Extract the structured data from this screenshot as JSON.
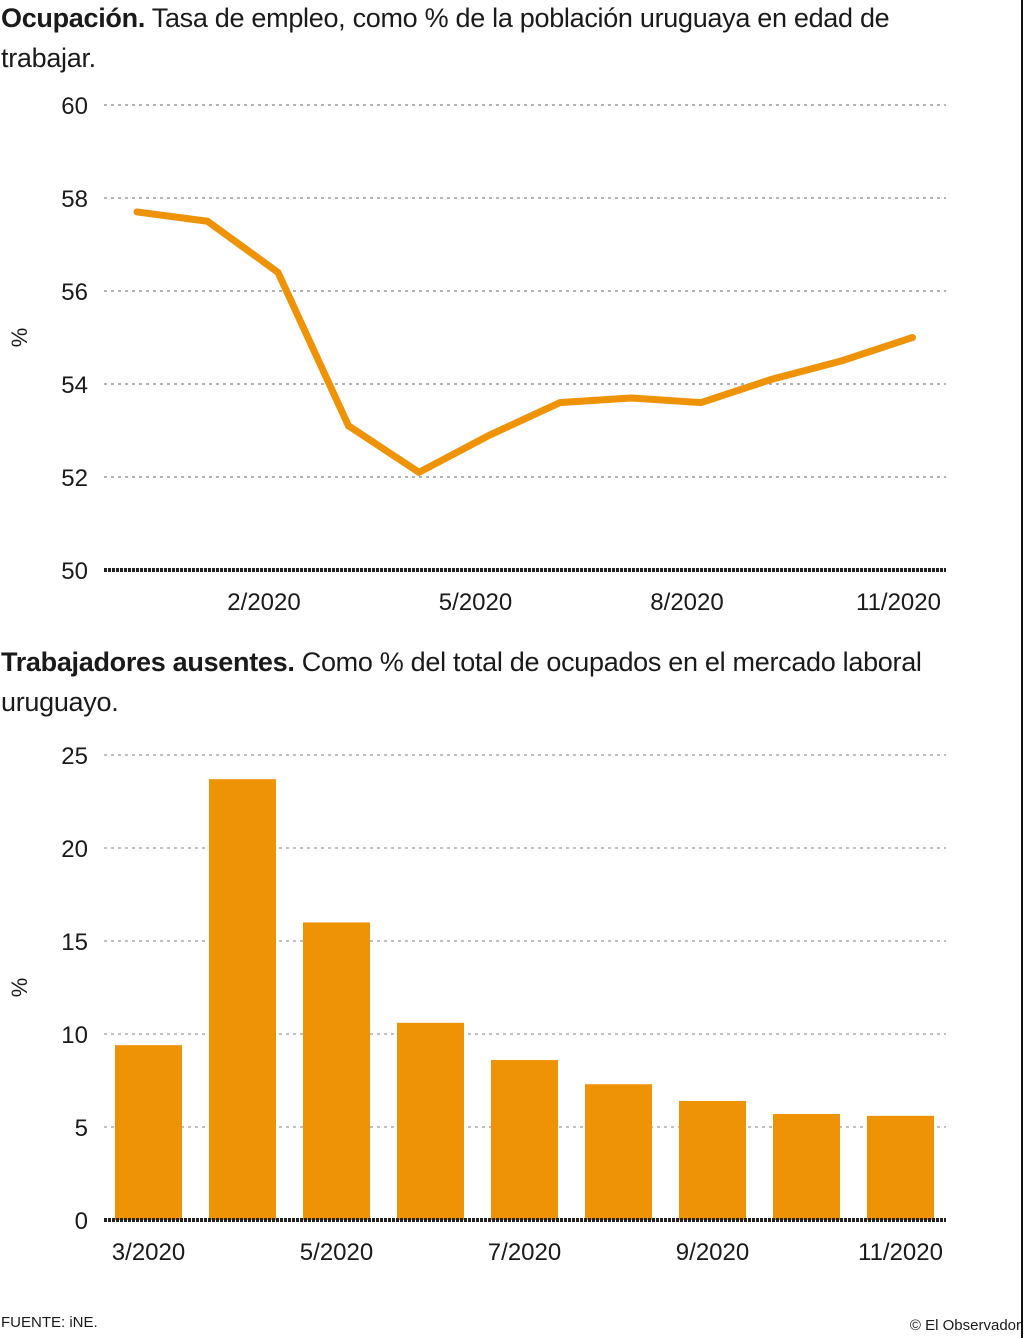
{
  "colors": {
    "accent": "#EF9306",
    "grid": "#9a9a9a",
    "axis": "#222222"
  },
  "footer": {
    "source": "FUENTE: iNE.",
    "credit": "© El Observador"
  },
  "chart_data": [
    {
      "type": "line",
      "title_bold": "Ocupación.",
      "title": "Tasa de empleo, como % de la población uruguaya en edad de trabajar.",
      "xlabel": "",
      "ylabel": "%",
      "ylim": [
        50,
        60
      ],
      "yticks": [
        50,
        52,
        54,
        56,
        58,
        60
      ],
      "ytick_labels": [
        "50",
        "52",
        "54",
        "56",
        "58",
        "60"
      ],
      "grid": true,
      "x": [
        "12/2019",
        "1/2020",
        "2/2020",
        "3/2020",
        "4/2020",
        "5/2020",
        "6/2020",
        "7/2020",
        "8/2020",
        "9/2020",
        "10/2020",
        "11/2020"
      ],
      "xtick_labels": [
        "2/2020",
        "5/2020",
        "8/2020",
        "11/2020"
      ],
      "series": [
        {
          "name": "Tasa de empleo",
          "values": [
            57.7,
            57.5,
            56.4,
            53.1,
            52.1,
            52.9,
            53.6,
            53.7,
            53.6,
            54.1,
            54.5,
            55.0
          ]
        }
      ]
    },
    {
      "type": "bar",
      "title_bold": "Trabajadores ausentes.",
      "title": "Como % del total de ocupados en el mercado laboral uruguayo.",
      "xlabel": "",
      "ylabel": "%",
      "ylim": [
        0,
        25
      ],
      "yticks": [
        0,
        5,
        10,
        15,
        20,
        25
      ],
      "ytick_labels": [
        "0",
        "5",
        "10",
        "15",
        "20",
        "25"
      ],
      "grid": true,
      "categories": [
        "3/2020",
        "4/2020",
        "5/2020",
        "6/2020",
        "7/2020",
        "8/2020",
        "9/2020",
        "10/2020",
        "11/2020"
      ],
      "xtick_labels": [
        "3/2020",
        "5/2020",
        "7/2020",
        "9/2020",
        "11/2020"
      ],
      "values": [
        9.4,
        23.7,
        16.0,
        10.6,
        8.6,
        7.3,
        6.4,
        5.7,
        5.6
      ]
    }
  ]
}
